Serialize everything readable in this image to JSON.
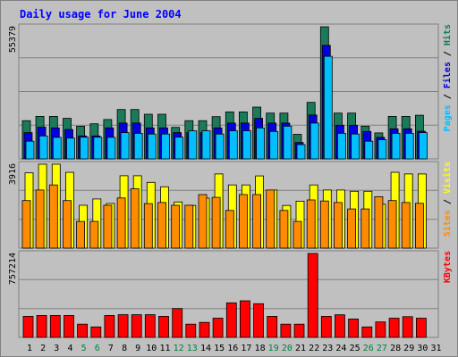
{
  "title": "Daily usage for June 2004",
  "colors": {
    "hits": "#1a7a5a",
    "files": "#0000dd",
    "pages": "#00bfff",
    "visits": "#ffff00",
    "sites": "#ff8c00",
    "kbytes": "#ff0000",
    "weekend_label": "#008040",
    "title": "#0000ff",
    "background": "#c0c0c0",
    "grid": "#808080"
  },
  "right_labels": {
    "top": [
      {
        "text": "Pages",
        "color": "#00bfff"
      },
      {
        "text": "Files",
        "color": "#0000dd"
      },
      {
        "text": "Hits",
        "color": "#1a7a5a"
      }
    ],
    "middle": [
      {
        "text": "Sites",
        "color": "#ff8c00"
      },
      {
        "text": "Visits",
        "color": "#ffff00"
      }
    ],
    "bottom": [
      {
        "text": "KBytes",
        "color": "#ff0000"
      }
    ]
  },
  "chart_data": [
    {
      "type": "bar",
      "ymax_label": "55379",
      "ylim": [
        0,
        55379
      ],
      "categories": [
        "1",
        "2",
        "3",
        "4",
        "5",
        "6",
        "7",
        "8",
        "9",
        "10",
        "11",
        "12",
        "13",
        "14",
        "15",
        "16",
        "17",
        "18",
        "19",
        "20",
        "21",
        "22",
        "23",
        "24",
        "25",
        "26",
        "27",
        "28",
        "29",
        "30",
        "31"
      ],
      "weekend_days": [
        "5",
        "6",
        "12",
        "13",
        "19",
        "20",
        "26",
        "27"
      ],
      "series": [
        {
          "name": "Hits",
          "values": [
            16000,
            17800,
            17800,
            17000,
            13700,
            14700,
            16500,
            20700,
            20700,
            18700,
            18700,
            13200,
            16000,
            16000,
            17700,
            19700,
            19700,
            21700,
            19200,
            19200,
            10300,
            23700,
            55379,
            19200,
            19200,
            13700,
            10900,
            17800,
            17800,
            18300,
            0
          ]
        },
        {
          "name": "Files",
          "values": [
            11000,
            13300,
            13000,
            12300,
            9600,
            9600,
            13000,
            15000,
            15000,
            13000,
            13000,
            11000,
            11000,
            11000,
            13000,
            15000,
            15000,
            17000,
            15000,
            15000,
            6900,
            18400,
            47600,
            14100,
            14100,
            11500,
            9000,
            12600,
            12600,
            11600,
            0
          ]
        },
        {
          "name": "Pages",
          "values": [
            7400,
            9600,
            9000,
            8700,
            9100,
            9100,
            9000,
            11000,
            10700,
            10400,
            10400,
            9100,
            11800,
            11800,
            10400,
            11800,
            11800,
            13000,
            11500,
            13700,
            6000,
            15000,
            43000,
            10700,
            10400,
            7400,
            8000,
            10700,
            10700,
            11000,
            0
          ]
        }
      ]
    },
    {
      "type": "bar",
      "ymax_label": "3916",
      "ylim": [
        0,
        3916
      ],
      "series": [
        {
          "name": "Visits",
          "values": [
            3510,
            3916,
            3916,
            3535,
            2000,
            2295,
            2085,
            3380,
            3380,
            3070,
            2860,
            2155,
            1990,
            2335,
            3460,
            2950,
            2950,
            3370,
            2710,
            1990,
            2190,
            2950,
            2710,
            2710,
            2655,
            2655,
            2050,
            3540,
            3460,
            3460,
            0
          ]
        },
        {
          "name": "Sites",
          "values": [
            2220,
            2710,
            2950,
            2220,
            1245,
            1245,
            2000,
            2340,
            2770,
            2080,
            2130,
            2000,
            2000,
            2500,
            2370,
            1760,
            2500,
            2500,
            2710,
            1760,
            1245,
            2250,
            2200,
            2130,
            1830,
            1830,
            2400,
            2220,
            2130,
            2090,
            0
          ]
        }
      ]
    },
    {
      "type": "bar",
      "ymax_label": "757214",
      "ylim": [
        0,
        757214
      ],
      "series": [
        {
          "name": "KBytes",
          "values": [
            190000,
            197000,
            197000,
            197000,
            119000,
            94000,
            197000,
            205000,
            205000,
            205000,
            190000,
            260000,
            119000,
            135000,
            173000,
            312000,
            330000,
            304000,
            190000,
            119000,
            119000,
            757214,
            190000,
            204000,
            166000,
            94000,
            139000,
            173000,
            187000,
            173000,
            0
          ]
        }
      ]
    }
  ]
}
